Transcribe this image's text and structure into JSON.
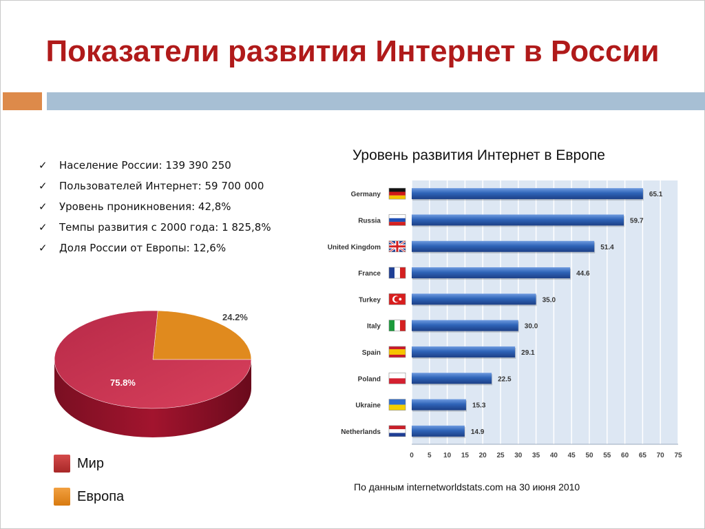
{
  "slide": {
    "title": "Показатели развития Интернет в России",
    "bullets": [
      "Население России: 139 390 250",
      "Пользователей Интернет: 59 700 000",
      "Уровень проникновения: 42,8%",
      "Темпы развития с 2000 года: 1 825,8%",
      "Доля России от Европы: 12,6%"
    ],
    "check_glyph": "✓",
    "source": "По данным internetworldstats.com на 30 июня 2010",
    "colors": {
      "title": "#b01a1a",
      "accent_orange": "#dd8a4a",
      "accent_blue": "#a7bfd4"
    }
  },
  "chart_data": [
    {
      "type": "bar",
      "orientation": "horizontal",
      "title": "Уровень развития Интернет в Европе",
      "categories": [
        "Germany",
        "Russia",
        "United Kingdom",
        "France",
        "Turkey",
        "Italy",
        "Spain",
        "Poland",
        "Ukraine",
        "Netherlands"
      ],
      "values": [
        65.1,
        59.7,
        51.4,
        44.6,
        35.0,
        30.0,
        29.1,
        22.5,
        15.3,
        14.9
      ],
      "value_labels": [
        "65.1",
        "59.7",
        "51.4",
        "44.6",
        "35.0",
        "30.0",
        "29.1",
        "22.5",
        "15.3",
        "14.9"
      ],
      "flags": [
        "germany-flag-icon",
        "russia-flag-icon",
        "uk-flag-icon",
        "france-flag-icon",
        "turkey-flag-icon",
        "italy-flag-icon",
        "spain-flag-icon",
        "poland-flag-icon",
        "ukraine-flag-icon",
        "netherlands-flag-icon"
      ],
      "xlim": [
        0,
        75
      ],
      "xticks": [
        0,
        5,
        10,
        15,
        20,
        25,
        30,
        35,
        40,
        45,
        50,
        55,
        60,
        65,
        70,
        75
      ],
      "grid": true,
      "bar_color": "#2f64b8",
      "plot_background": "#dde7f3"
    },
    {
      "type": "pie",
      "style": "3d",
      "slices": [
        {
          "name": "Мир",
          "value": 75.8,
          "label": "75.8%",
          "color": "#c8304e"
        },
        {
          "name": "Европа",
          "value": 24.2,
          "label": "24.2%",
          "color": "#e08a1e"
        }
      ],
      "legend": [
        "Мир",
        "Европа"
      ],
      "legend_position": "bottom-left"
    }
  ]
}
